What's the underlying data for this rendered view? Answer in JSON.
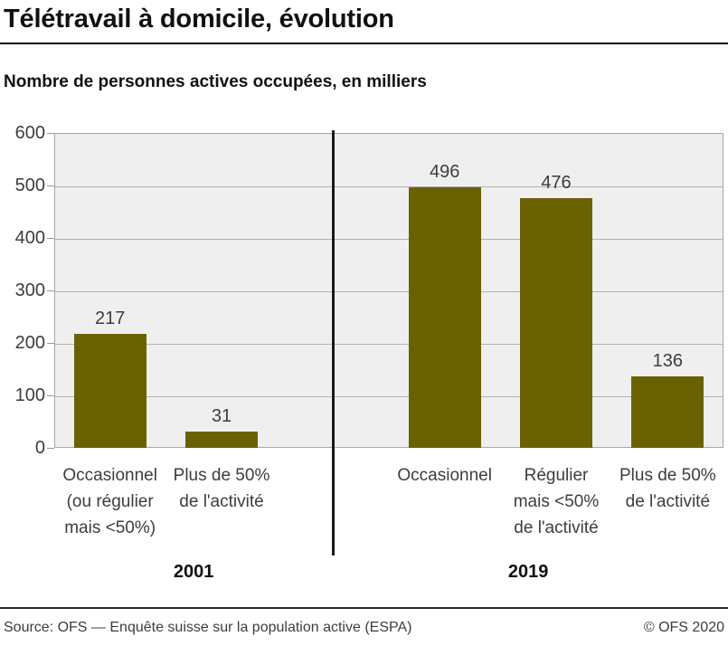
{
  "title": "Télétravail à domicile, évolution",
  "subtitle": "Nombre de personnes actives occupées, en milliers",
  "footer": {
    "source": "Source: OFS — Enquête suisse sur la population active (ESPA)",
    "copyright": "© OFS 2020"
  },
  "colors": {
    "bar": "#6a6202",
    "plot_background": "#efefef",
    "gridline": "#b2b2b2",
    "divider": "#1a1a1a"
  },
  "chart_data": {
    "type": "bar",
    "title": "Télétravail à domicile, évolution",
    "ylabel": "Nombre de personnes actives occupées, en milliers",
    "ylim": [
      0,
      600
    ],
    "yticks": [
      0,
      100,
      200,
      300,
      400,
      500,
      600
    ],
    "grid": true,
    "bar_color": "#6a6202",
    "legend": "none",
    "groups": [
      {
        "label": "2001",
        "categories": [
          [
            "Occasionnel",
            "(ou régulier",
            "mais <50%)"
          ],
          [
            "Plus de 50%",
            "de l'activité"
          ]
        ],
        "values": [
          217,
          31
        ]
      },
      {
        "label": "2019",
        "categories": [
          [
            "Occasionnel"
          ],
          [
            "Régulier",
            "mais <50%",
            "de l'activité"
          ],
          [
            "Plus de 50%",
            "de l'activité"
          ]
        ],
        "values": [
          496,
          476,
          136
        ]
      }
    ]
  }
}
